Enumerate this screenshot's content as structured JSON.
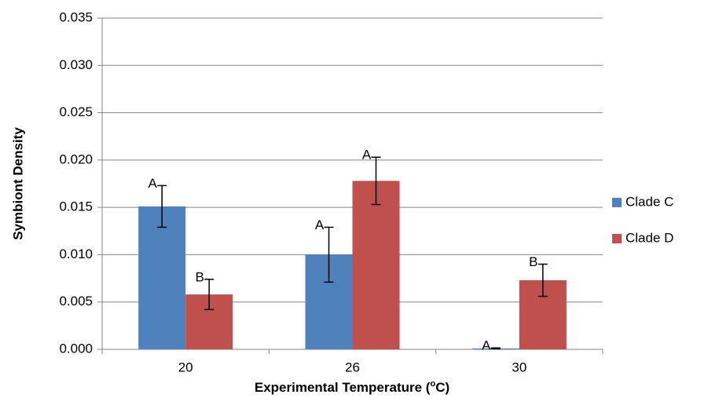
{
  "chart_data": {
    "type": "bar",
    "ylabel": "Symbiont Density",
    "xlabel": {
      "text": "Experimental Temperature (",
      "sup": "o",
      "tail": "C)"
    },
    "categories": [
      "20",
      "26",
      "30"
    ],
    "series": [
      {
        "name": "Clade C",
        "color": "#4f81bd",
        "values": [
          0.0151,
          0.01,
          0.0001
        ],
        "errors": [
          0.0022,
          0.0029,
          5e-05
        ],
        "letters": [
          "A",
          "A",
          "A"
        ]
      },
      {
        "name": "Clade D",
        "color": "#c0504d",
        "values": [
          0.0058,
          0.0178,
          0.0073
        ],
        "errors": [
          0.0016,
          0.0025,
          0.0017
        ],
        "letters": [
          "B",
          "A",
          "B"
        ]
      }
    ],
    "ylim": [
      0,
      0.035
    ],
    "yticks": [
      {
        "value": 0,
        "label": "0.000"
      },
      {
        "value": 0.005,
        "label": "0.005"
      },
      {
        "value": 0.01,
        "label": "0.010"
      },
      {
        "value": 0.015,
        "label": "0.015"
      },
      {
        "value": 0.02,
        "label": "0.020"
      },
      {
        "value": 0.025,
        "label": "0.025"
      },
      {
        "value": 0.03,
        "label": "0.030"
      },
      {
        "value": 0.035,
        "label": "0.035"
      }
    ],
    "grid": true,
    "legend": "right"
  }
}
